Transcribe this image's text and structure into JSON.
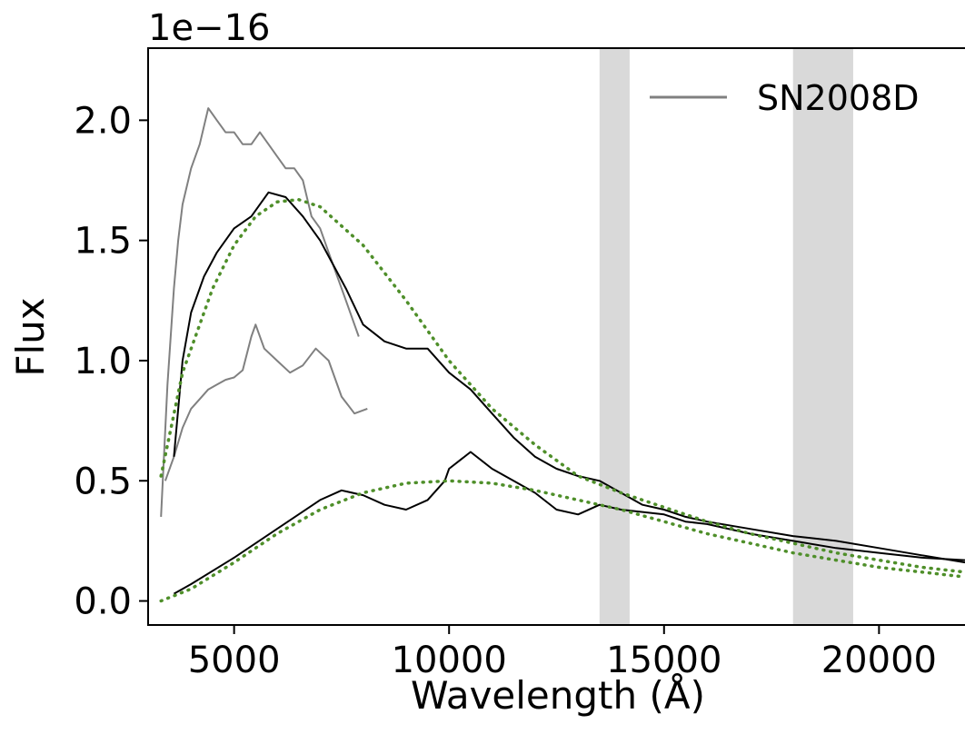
{
  "chart_data": {
    "type": "line",
    "title": "",
    "xlabel": "Wavelength (Å)",
    "ylabel": "Flux",
    "y_offset_label": "1e−16",
    "xlim": [
      3000,
      22000
    ],
    "ylim": [
      -0.1,
      2.3
    ],
    "x_ticks": [
      5000,
      10000,
      15000,
      20000
    ],
    "x_tick_labels": [
      "5000",
      "10000",
      "15000",
      "20000"
    ],
    "y_ticks": [
      0.0,
      0.5,
      1.0,
      1.5,
      2.0
    ],
    "y_tick_labels": [
      "0.0",
      "0.5",
      "1.0",
      "1.5",
      "2.0"
    ],
    "grid": false,
    "legend": {
      "position": "top-right",
      "entries": [
        {
          "label": "SN2008D",
          "color": "#808080"
        }
      ]
    },
    "shaded_bands": [
      {
        "x": [
          13500,
          14200
        ],
        "color": "#d9d9d9"
      },
      {
        "x": [
          18000,
          19400
        ],
        "color": "#d9d9d9"
      }
    ],
    "series": [
      {
        "name": "SN2008D",
        "color": "#808080",
        "style": "solid",
        "x": [
          3300,
          3450,
          3600,
          3700,
          3800,
          4000,
          4200,
          4400,
          4600,
          4800,
          5000,
          5200,
          5400,
          5600,
          5800,
          6000,
          6200,
          6400,
          6600,
          6800,
          7000,
          7200,
          7400,
          7600,
          7800,
          7900
        ],
        "y": [
          0.35,
          0.9,
          1.3,
          1.5,
          1.65,
          1.8,
          1.9,
          2.05,
          2.0,
          1.95,
          1.95,
          1.9,
          1.9,
          1.95,
          1.9,
          1.85,
          1.8,
          1.8,
          1.75,
          1.6,
          1.55,
          1.45,
          1.35,
          1.25,
          1.15,
          1.1
        ]
      },
      {
        "name": "SN2008D",
        "color": "#808080",
        "style": "solid",
        "x": [
          3400,
          3600,
          3800,
          4000,
          4200,
          4400,
          4600,
          4800,
          5000,
          5200,
          5400,
          5500,
          5700,
          6000,
          6300,
          6600,
          6900,
          7200,
          7500,
          7800,
          8100
        ],
        "y": [
          0.5,
          0.6,
          0.72,
          0.8,
          0.84,
          0.88,
          0.9,
          0.92,
          0.93,
          0.96,
          1.1,
          1.15,
          1.05,
          1.0,
          0.95,
          0.98,
          1.05,
          1.0,
          0.85,
          0.78,
          0.8
        ]
      },
      {
        "name": "",
        "color": "#000000",
        "style": "solid",
        "x": [
          3600,
          3800,
          4000,
          4300,
          4600,
          5000,
          5400,
          5800,
          6200,
          6600,
          7000,
          7300,
          7600,
          8000,
          8500,
          9000,
          9500,
          10000,
          10500,
          11000,
          11500,
          12000,
          12500,
          13000,
          13500,
          14000,
          14500,
          15000,
          15500,
          16000,
          17000,
          18000,
          19000,
          20000,
          21000,
          22000
        ],
        "y": [
          0.6,
          1.0,
          1.2,
          1.35,
          1.45,
          1.55,
          1.6,
          1.7,
          1.68,
          1.6,
          1.5,
          1.4,
          1.3,
          1.15,
          1.08,
          1.05,
          1.05,
          0.95,
          0.88,
          0.78,
          0.68,
          0.6,
          0.55,
          0.52,
          0.5,
          0.45,
          0.4,
          0.38,
          0.35,
          0.33,
          0.3,
          0.27,
          0.25,
          0.22,
          0.19,
          0.16
        ]
      },
      {
        "name": "",
        "color": "#000000",
        "style": "solid",
        "x": [
          3600,
          4000,
          5000,
          6000,
          7000,
          7500,
          8000,
          8500,
          9000,
          9500,
          9900,
          10000,
          10500,
          11000,
          11500,
          12000,
          12500,
          13000,
          13500,
          14000,
          14500,
          15000,
          15500,
          16000,
          17000,
          18000,
          19000,
          20000,
          21000,
          22000
        ],
        "y": [
          0.03,
          0.07,
          0.18,
          0.3,
          0.42,
          0.46,
          0.44,
          0.4,
          0.38,
          0.42,
          0.5,
          0.55,
          0.62,
          0.55,
          0.5,
          0.45,
          0.38,
          0.36,
          0.4,
          0.38,
          0.37,
          0.36,
          0.33,
          0.32,
          0.28,
          0.25,
          0.22,
          0.2,
          0.18,
          0.17
        ]
      },
      {
        "name": "",
        "color": "#4f8f2a",
        "style": "dotted",
        "x": [
          3300,
          3800,
          4500,
          5000,
          5500,
          6000,
          6500,
          7000,
          8000,
          9000,
          10000,
          11000,
          12000,
          13000,
          14000,
          15000,
          16000,
          17000,
          18000,
          19000,
          20000,
          21000,
          22000
        ],
        "y": [
          0.52,
          0.95,
          1.3,
          1.48,
          1.6,
          1.66,
          1.67,
          1.64,
          1.48,
          1.25,
          1.0,
          0.8,
          0.65,
          0.52,
          0.45,
          0.39,
          0.33,
          0.28,
          0.24,
          0.2,
          0.17,
          0.14,
          0.12
        ]
      },
      {
        "name": "",
        "color": "#4f8f2a",
        "style": "dotted",
        "x": [
          3300,
          4000,
          5000,
          6000,
          7000,
          8000,
          9000,
          10000,
          11000,
          12000,
          13000,
          14000,
          15000,
          16000,
          17000,
          18000,
          19000,
          20000,
          21000,
          22000
        ],
        "y": [
          0.0,
          0.05,
          0.16,
          0.28,
          0.38,
          0.45,
          0.49,
          0.5,
          0.49,
          0.46,
          0.42,
          0.38,
          0.33,
          0.28,
          0.24,
          0.2,
          0.17,
          0.14,
          0.12,
          0.1
        ]
      }
    ]
  }
}
